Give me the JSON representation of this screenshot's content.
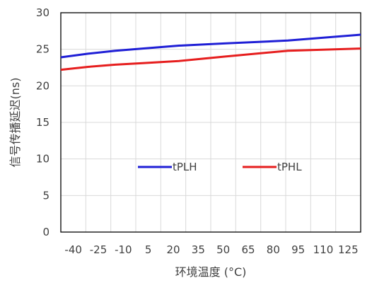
{
  "chart_data": {
    "type": "line",
    "title": "",
    "xlabel": "环境温度 (°C)",
    "ylabel": "信号传播延迟(ns)",
    "x_ticks": [
      -40,
      -25,
      -10,
      5,
      20,
      35,
      50,
      65,
      80,
      95,
      110,
      125
    ],
    "y_ticks": [
      0,
      5,
      10,
      15,
      20,
      25,
      30
    ],
    "xlim": [
      -40,
      125
    ],
    "ylim": [
      0,
      30
    ],
    "grid": true,
    "legend_position": "middle",
    "series": [
      {
        "name": "tPLH",
        "color": "#1f1fd6",
        "x": [
          -40,
          -25,
          -10,
          5,
          25,
          50,
          85,
          125
        ],
        "y": [
          23.9,
          24.4,
          24.8,
          25.1,
          25.5,
          25.8,
          26.2,
          27.0
        ]
      },
      {
        "name": "tPHL",
        "color": "#e61e1e",
        "x": [
          -40,
          -25,
          -10,
          5,
          25,
          50,
          85,
          125
        ],
        "y": [
          22.2,
          22.6,
          22.9,
          23.1,
          23.4,
          24.0,
          24.8,
          25.1
        ]
      }
    ]
  }
}
